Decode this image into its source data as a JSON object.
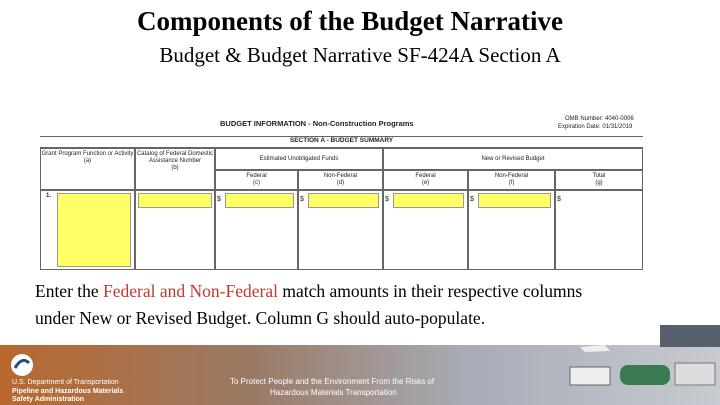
{
  "header": {
    "title": "Components of the Budget Narrative",
    "subtitle": "Budget & Budget Narrative SF-424A Section A"
  },
  "form": {
    "title": "BUDGET INFORMATION - Non-Construction Programs",
    "omb_number": "OMB Number: 4040-0006",
    "expiration": "Expiration Date: 01/31/2019",
    "section": "SECTION A - BUDGET SUMMARY",
    "columns": [
      {
        "label": "Grant Program Function or Activity",
        "code": "(a)"
      },
      {
        "label": "Catalog of Federal Domestic Assistance Number",
        "code": "(b)"
      },
      {
        "label": "Federal",
        "code": "(c)"
      },
      {
        "label": "Non-Federal",
        "code": "(d)"
      },
      {
        "label": "Federal",
        "code": "(e)"
      },
      {
        "label": "Non-Federal",
        "code": "(f)"
      },
      {
        "label": "Total",
        "code": "(g)"
      }
    ],
    "groups": [
      "Estimated Unobligated Funds",
      "New or Revised Budget"
    ],
    "row_label": "1.",
    "currency": "$"
  },
  "body": [
    "Enter the ",
    "Federal and Non-Federal",
    " match amounts in their respective columns",
    "under New or Revised Budget. Column G should auto-populate."
  ],
  "footer": {
    "agency": [
      "U.S. Department of Transportation",
      "Pipeline and Hazardous Materials",
      "Safety Administration"
    ],
    "tagline": [
      "To Protect People and the Environment From the Risks of",
      "Hazardous Materials Transportation"
    ]
  }
}
